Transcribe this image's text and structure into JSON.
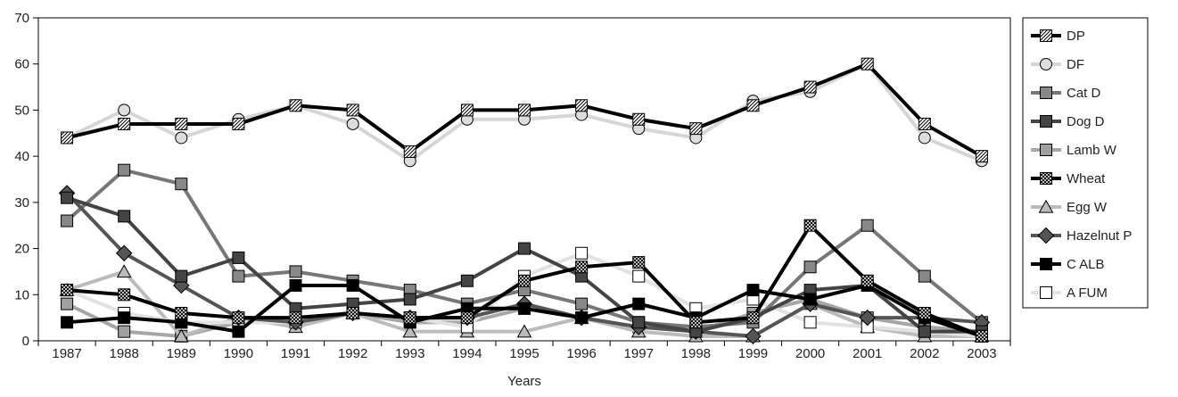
{
  "chart_data": {
    "type": "line",
    "xlabel": "Years",
    "ylabel": "",
    "ylim": [
      0,
      70
    ],
    "yticks": [
      0,
      10,
      20,
      30,
      40,
      50,
      60,
      70
    ],
    "x": [
      "1987",
      "1988",
      "1989",
      "1990",
      "1991",
      "1992",
      "1993",
      "1994",
      "1995",
      "1996",
      "1997",
      "1998",
      "1999",
      "2000",
      "2001",
      "2002",
      "2003"
    ],
    "legend_position": "right",
    "grid": false,
    "series": [
      {
        "name": "DP",
        "line_color": "#000000",
        "marker": "square",
        "marker_fill": "hatch",
        "values": [
          44,
          47,
          47,
          47,
          51,
          50,
          41,
          50,
          50,
          51,
          48,
          46,
          51,
          55,
          60,
          47,
          40
        ]
      },
      {
        "name": "DF",
        "line_color": "#d6d6d6",
        "marker": "circle",
        "marker_fill": "#dddddd",
        "values": [
          44,
          50,
          44,
          48,
          51,
          47,
          39,
          48,
          48,
          49,
          46,
          44,
          52,
          54,
          60,
          44,
          39
        ]
      },
      {
        "name": "Cat D",
        "line_color": "#777777",
        "marker": "square",
        "marker_fill": "#888888",
        "values": [
          26,
          37,
          34,
          14,
          15,
          13,
          11,
          8,
          11,
          8,
          4,
          3,
          4,
          16,
          25,
          14,
          4
        ]
      },
      {
        "name": "Dog D",
        "line_color": "#444444",
        "marker": "square",
        "marker_fill": "#444444",
        "values": [
          31,
          27,
          14,
          18,
          7,
          8,
          9,
          13,
          20,
          14,
          4,
          2,
          5,
          11,
          12,
          2,
          2
        ]
      },
      {
        "name": "Lamb W",
        "line_color": "#a6a6a6",
        "marker": "square",
        "marker_fill": "#a0a0a0",
        "values": [
          8,
          2,
          1,
          4,
          5,
          6,
          4,
          4,
          7,
          5,
          3,
          2,
          6,
          9,
          5,
          3,
          2
        ]
      },
      {
        "name": "Wheat",
        "line_color": "#000000",
        "marker": "square",
        "marker_fill": "crosshatch",
        "values": [
          11,
          10,
          6,
          5,
          5,
          6,
          5,
          5,
          13,
          16,
          17,
          4,
          5,
          25,
          13,
          6,
          1
        ]
      },
      {
        "name": "Egg W",
        "line_color": "#bbbbbb",
        "marker": "triangle",
        "marker_fill": "#bbbbbb",
        "values": [
          11,
          15,
          1,
          5,
          3,
          6,
          2,
          2,
          2,
          5,
          2,
          1,
          1,
          8,
          3,
          1,
          1
        ]
      },
      {
        "name": "Hazelnut P",
        "line_color": "#555555",
        "marker": "diamond",
        "marker_fill": "#555555",
        "values": [
          32,
          19,
          12,
          5,
          4,
          6,
          5,
          5,
          8,
          5,
          3,
          2,
          1,
          8,
          5,
          5,
          4
        ]
      },
      {
        "name": "C ALB",
        "line_color": "#000000",
        "marker": "square",
        "marker_fill": "#000000",
        "values": [
          4,
          5,
          4,
          2,
          12,
          12,
          4,
          7,
          7,
          5,
          8,
          5,
          11,
          9,
          12,
          5,
          1
        ]
      },
      {
        "name": "A FUM",
        "line_color": "#e2e2e2",
        "marker": "square",
        "marker_fill": "#ffffff",
        "values": [
          11,
          6,
          4,
          4,
          4,
          6,
          5,
          3,
          14,
          19,
          14,
          7,
          9,
          4,
          3,
          2,
          1
        ]
      }
    ]
  }
}
